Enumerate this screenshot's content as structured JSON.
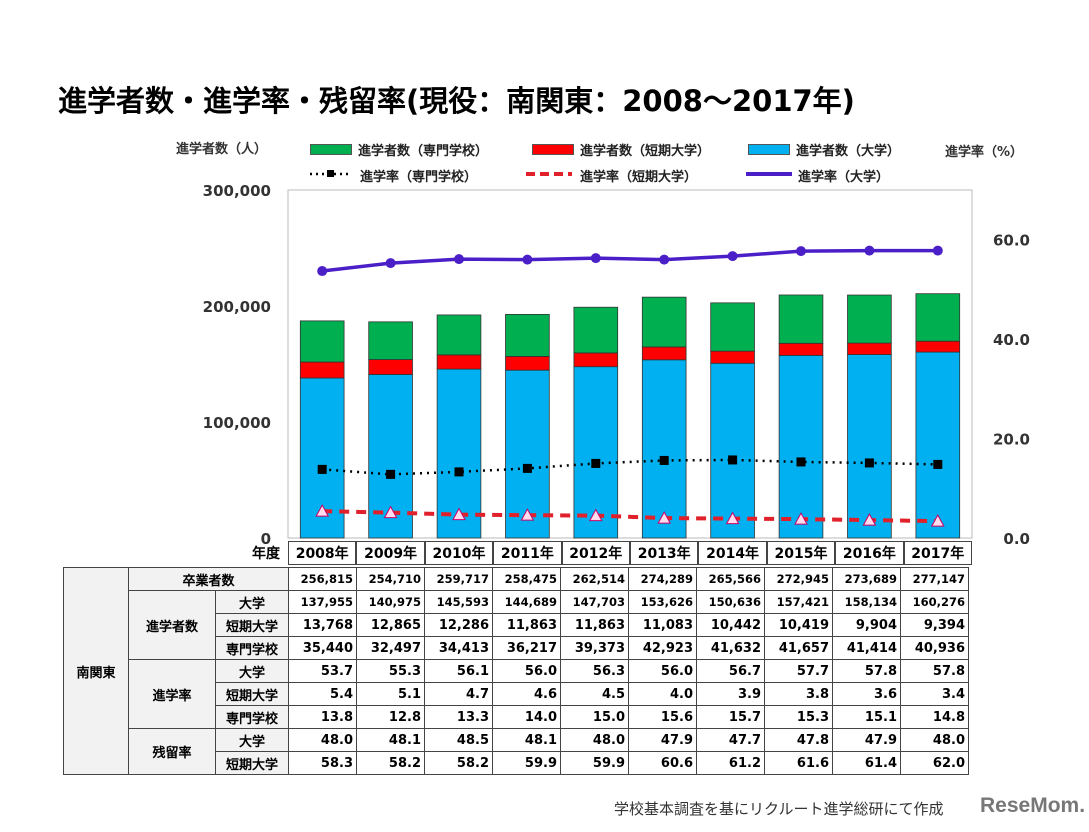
{
  "title": "進学者数・進学率・残留率(現役：南関東：2008～2017年)",
  "source_note": "学校基本調査を基にリクルート進学総研にて作成",
  "logo": "ReseMom",
  "chart_data": {
    "type": "bar+line",
    "ylabel_left": "進学者数（人）",
    "ylabel_right": "進学率（%）",
    "ylim_left": [
      0,
      300000
    ],
    "ylim_right": [
      0,
      70
    ],
    "left_ticks": [
      "0",
      "100,000",
      "200,000",
      "300,000"
    ],
    "right_ticks": [
      "0.0",
      "20.0",
      "40.0",
      "60.0"
    ],
    "categories": [
      "2008年",
      "2009年",
      "2010年",
      "2011年",
      "2012年",
      "2013年",
      "2014年",
      "2015年",
      "2016年",
      "2017年"
    ],
    "bar_series": [
      {
        "name": "進学者数（大学）",
        "color": "#00b0f0",
        "values": [
          137955,
          140975,
          145593,
          144689,
          147703,
          153626,
          150636,
          157421,
          158134,
          160276
        ]
      },
      {
        "name": "進学者数（短期大学）",
        "color": "#ff0000",
        "values": [
          13768,
          12865,
          12286,
          11863,
          11863,
          11083,
          10442,
          10419,
          9904,
          9394
        ]
      },
      {
        "name": "進学者数（専門学校）",
        "color": "#00b050",
        "values": [
          35440,
          32497,
          34413,
          36217,
          39373,
          42923,
          41632,
          41657,
          41414,
          40936
        ]
      }
    ],
    "line_series": [
      {
        "name": "進学率（専門学校）",
        "color": "#000000",
        "style": "dotted",
        "marker": "square",
        "values": [
          13.8,
          12.8,
          13.3,
          14.0,
          15.0,
          15.6,
          15.7,
          15.3,
          15.1,
          14.8
        ]
      },
      {
        "name": "進学率（短期大学）",
        "color": "#e0202a",
        "style": "dashed",
        "marker": "triangle",
        "values": [
          5.4,
          5.1,
          4.7,
          4.6,
          4.5,
          4.0,
          3.9,
          3.8,
          3.6,
          3.4
        ]
      },
      {
        "name": "進学率（大学）",
        "color": "#4b1fc8",
        "style": "solid",
        "marker": "circle",
        "values": [
          53.7,
          55.3,
          56.1,
          56.0,
          56.3,
          56.0,
          56.7,
          57.7,
          57.8,
          57.8
        ]
      }
    ],
    "legend": "top",
    "grid": false
  },
  "table": {
    "year_header": "年度",
    "region": "南関東",
    "graduates_label": "卒業者数",
    "graduates": [
      "256,815",
      "254,710",
      "259,717",
      "258,475",
      "262,514",
      "274,289",
      "265,566",
      "272,945",
      "273,689",
      "277,147"
    ],
    "groups": [
      {
        "label": "進学者数",
        "rows": [
          {
            "label": "大学",
            "values": [
              "137,955",
              "140,975",
              "145,593",
              "144,689",
              "147,703",
              "153,626",
              "150,636",
              "157,421",
              "158,134",
              "160,276"
            ]
          },
          {
            "label": "短期大学",
            "values": [
              "13,768",
              "12,865",
              "12,286",
              "11,863",
              "11,863",
              "11,083",
              "10,442",
              "10,419",
              "9,904",
              "9,394"
            ]
          },
          {
            "label": "専門学校",
            "values": [
              "35,440",
              "32,497",
              "34,413",
              "36,217",
              "39,373",
              "42,923",
              "41,632",
              "41,657",
              "41,414",
              "40,936"
            ]
          }
        ]
      },
      {
        "label": "進学率",
        "rows": [
          {
            "label": "大学",
            "values": [
              "53.7",
              "55.3",
              "56.1",
              "56.0",
              "56.3",
              "56.0",
              "56.7",
              "57.7",
              "57.8",
              "57.8"
            ]
          },
          {
            "label": "短期大学",
            "values": [
              "5.4",
              "5.1",
              "4.7",
              "4.6",
              "4.5",
              "4.0",
              "3.9",
              "3.8",
              "3.6",
              "3.4"
            ]
          },
          {
            "label": "専門学校",
            "values": [
              "13.8",
              "12.8",
              "13.3",
              "14.0",
              "15.0",
              "15.6",
              "15.7",
              "15.3",
              "15.1",
              "14.8"
            ]
          }
        ]
      },
      {
        "label": "残留率",
        "rows": [
          {
            "label": "大学",
            "values": [
              "48.0",
              "48.1",
              "48.5",
              "48.1",
              "48.0",
              "47.9",
              "47.7",
              "47.8",
              "47.9",
              "48.0"
            ]
          },
          {
            "label": "短期大学",
            "values": [
              "58.3",
              "58.2",
              "58.2",
              "59.9",
              "59.9",
              "60.6",
              "61.2",
              "61.6",
              "61.4",
              "62.0"
            ]
          }
        ]
      }
    ]
  }
}
